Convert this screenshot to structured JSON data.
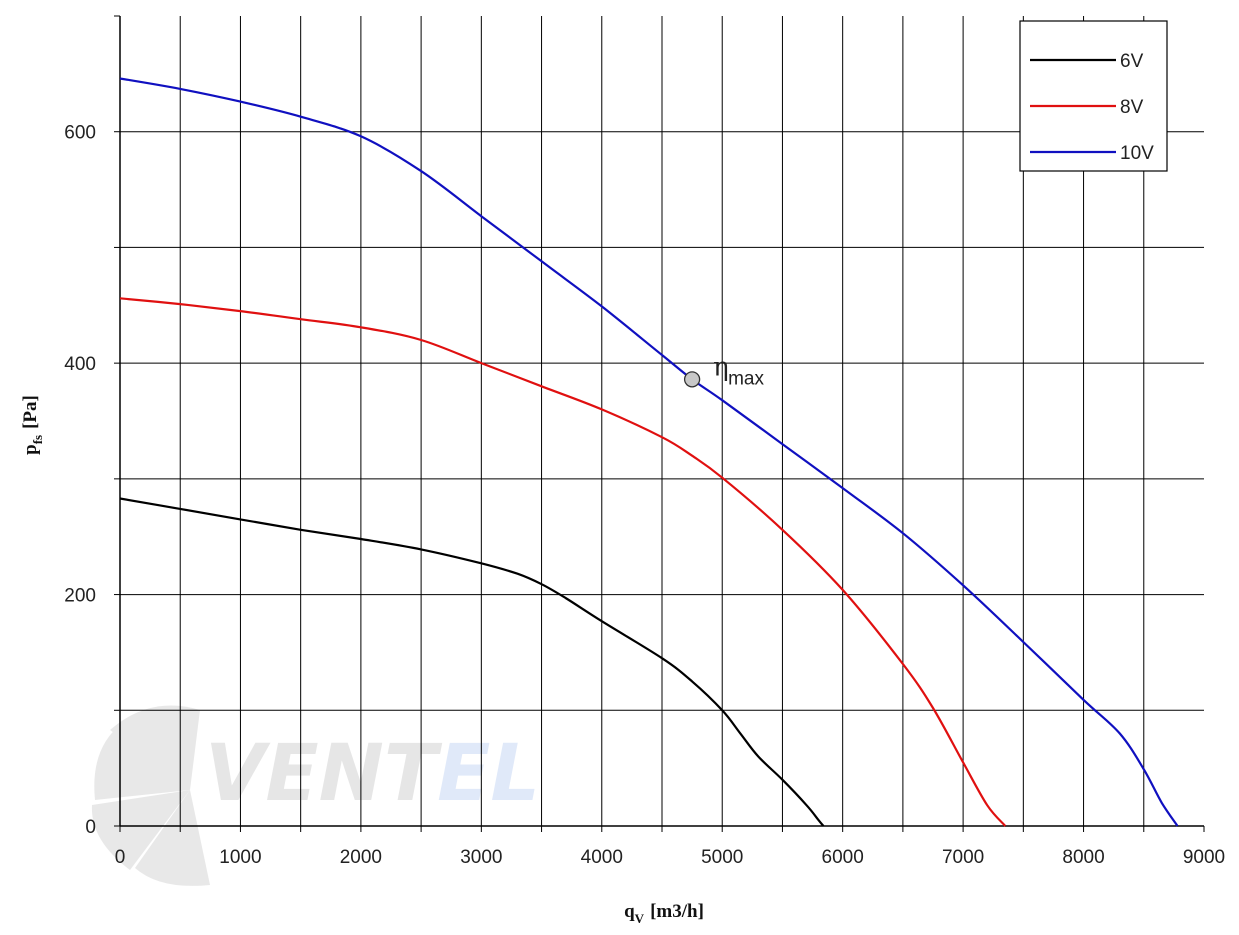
{
  "chart_data": {
    "type": "line",
    "xlabel": "q",
    "xlabel_sub": "V",
    "xlabel_unit": "[m3/h]",
    "ylabel": "p",
    "ylabel_sub": "fs",
    "ylabel_unit": "[Pa]",
    "xlim": [
      0,
      9000
    ],
    "ylim": [
      0,
      700
    ],
    "x_ticks": [
      0,
      1000,
      2000,
      3000,
      4000,
      5000,
      6000,
      7000,
      8000,
      9000
    ],
    "y_ticks": [
      0,
      200,
      400,
      600
    ],
    "x_grid_step": 500,
    "y_grid_step": 100,
    "grid": true,
    "legend_position": "top-right",
    "series": [
      {
        "name": "6V",
        "color": "#000000",
        "points": [
          [
            0,
            283
          ],
          [
            500,
            274
          ],
          [
            1000,
            265
          ],
          [
            1500,
            256
          ],
          [
            2000,
            248
          ],
          [
            2500,
            239
          ],
          [
            3000,
            227
          ],
          [
            3300,
            218
          ],
          [
            3500,
            209
          ],
          [
            3700,
            197
          ],
          [
            4000,
            177
          ],
          [
            4500,
            145
          ],
          [
            4750,
            125
          ],
          [
            5000,
            100
          ],
          [
            5150,
            80
          ],
          [
            5300,
            60
          ],
          [
            5500,
            40
          ],
          [
            5700,
            18
          ],
          [
            5800,
            5
          ],
          [
            5840,
            0
          ]
        ]
      },
      {
        "name": "8V",
        "color": "#e01010",
        "points": [
          [
            0,
            456
          ],
          [
            500,
            451
          ],
          [
            1000,
            445
          ],
          [
            1500,
            438
          ],
          [
            2000,
            431
          ],
          [
            2500,
            420
          ],
          [
            3000,
            400
          ],
          [
            3500,
            380
          ],
          [
            4000,
            360
          ],
          [
            4500,
            336
          ],
          [
            4750,
            320
          ],
          [
            5000,
            301
          ],
          [
            5500,
            256
          ],
          [
            6000,
            204
          ],
          [
            6500,
            140
          ],
          [
            6750,
            102
          ],
          [
            7000,
            55
          ],
          [
            7200,
            18
          ],
          [
            7350,
            0
          ]
        ]
      },
      {
        "name": "10V",
        "color": "#1010c0",
        "points": [
          [
            0,
            646
          ],
          [
            500,
            637
          ],
          [
            1000,
            626
          ],
          [
            1500,
            613
          ],
          [
            2000,
            596
          ],
          [
            2500,
            566
          ],
          [
            3000,
            527
          ],
          [
            3500,
            488
          ],
          [
            4000,
            449
          ],
          [
            4500,
            407
          ],
          [
            4750,
            386
          ],
          [
            5000,
            368
          ],
          [
            5500,
            330
          ],
          [
            6000,
            292
          ],
          [
            6500,
            253
          ],
          [
            7000,
            208
          ],
          [
            7500,
            159
          ],
          [
            8000,
            109
          ],
          [
            8300,
            80
          ],
          [
            8500,
            49
          ],
          [
            8650,
            20
          ],
          [
            8780,
            0
          ]
        ]
      }
    ],
    "annotations": [
      {
        "label": "η",
        "sub": "max",
        "x": 4750,
        "y": 386,
        "marker": "circle"
      }
    ],
    "watermark": "VENTEL"
  }
}
